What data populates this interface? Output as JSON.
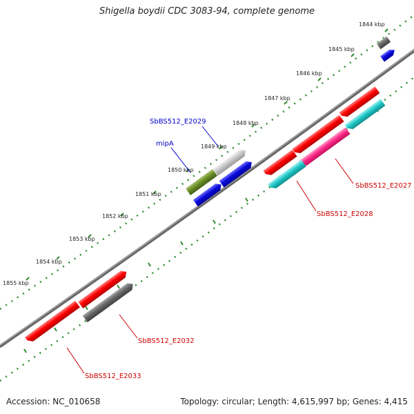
{
  "title": "Shigella boydii CDC 3083-94, complete genome",
  "footer": {
    "accession": "Accession: NC_010658",
    "summary": "Topology: circular; Length: 4,615,997 bp; Genes: 4,415"
  },
  "ticks": [
    {
      "label": "1844 kbp"
    },
    {
      "label": "1845 kbp"
    },
    {
      "label": "1846 kbp"
    },
    {
      "label": "1847 kbp"
    },
    {
      "label": "1848 kbp"
    },
    {
      "label": "1849 kbp"
    },
    {
      "label": "1850 kbp"
    },
    {
      "label": "1851 kbp"
    },
    {
      "label": "1852 kbp"
    },
    {
      "label": "1853 kbp"
    },
    {
      "label": "1854 kbp"
    },
    {
      "label": "1855 kbp"
    }
  ],
  "gene_labels": [
    {
      "text": "SbBS512_E2029",
      "color": "#0000cc"
    },
    {
      "text": "mipA",
      "color": "#0000cc"
    },
    {
      "text": "SbBS512_E2027",
      "color": "#cc0000"
    },
    {
      "text": "SbBS512_E2028",
      "color": "#cc0000"
    },
    {
      "text": "SbBS512_E2032",
      "color": "#cc0000"
    },
    {
      "text": "SbBS512_E2033",
      "color": "#cc0000"
    }
  ],
  "colors": {
    "backbone": "#777777",
    "tick": "#2e8b2e",
    "red": "#ff0000",
    "cyan": "#20c8c8",
    "magenta": "#ff2a8a",
    "blue": "#0a0adc",
    "olive": "#6b8e23",
    "lightgray": "#c8c8c8",
    "darkgray": "#666666"
  }
}
